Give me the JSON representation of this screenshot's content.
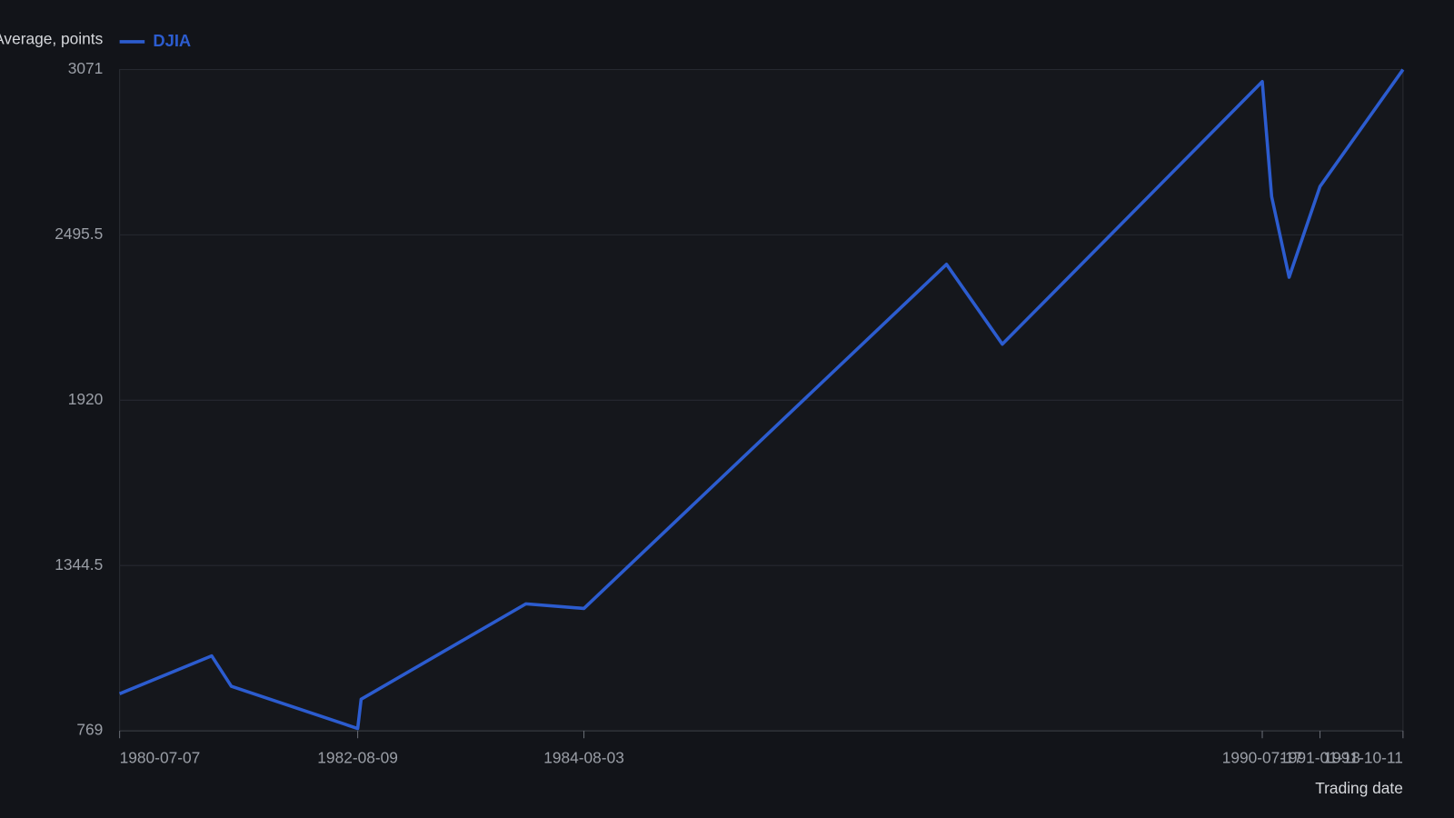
{
  "chart_data": {
    "type": "line",
    "y_label": "Dow Jones Industrial Average, points",
    "x_label": "Trading date",
    "x": [
      "1980-07-07",
      "1981-04-28",
      "1981-06-30",
      "1982-08-09",
      "1982-08-20",
      "1984-01-30",
      "1984-08-03",
      "1987-10-09",
      "1988-04-05",
      "1990-07-17",
      "1990-08-16",
      "1990-10-11",
      "1991-01-18",
      "1991-10-11"
    ],
    "series": [
      {
        "name": "DJIA",
        "color": "#2c5ccf",
        "values": [
          898,
          1030,
          924,
          777,
          879,
          1211,
          1195,
          2393,
          2115,
          3029,
          2629,
          2348,
          2664,
          3071
        ]
      }
    ],
    "xlim": [
      "1980-07-07",
      "1991-10-11"
    ],
    "xticks": [
      "1980-07-07",
      "1982-08-09",
      "1984-08-03",
      "1990-07-17",
      "1991-01-18",
      "1991-10-11"
    ],
    "ylim": [
      769,
      3071
    ],
    "yticks": [
      769,
      1344.5,
      1920,
      2495.5,
      3071
    ],
    "grid": true,
    "legend": "top-left"
  }
}
